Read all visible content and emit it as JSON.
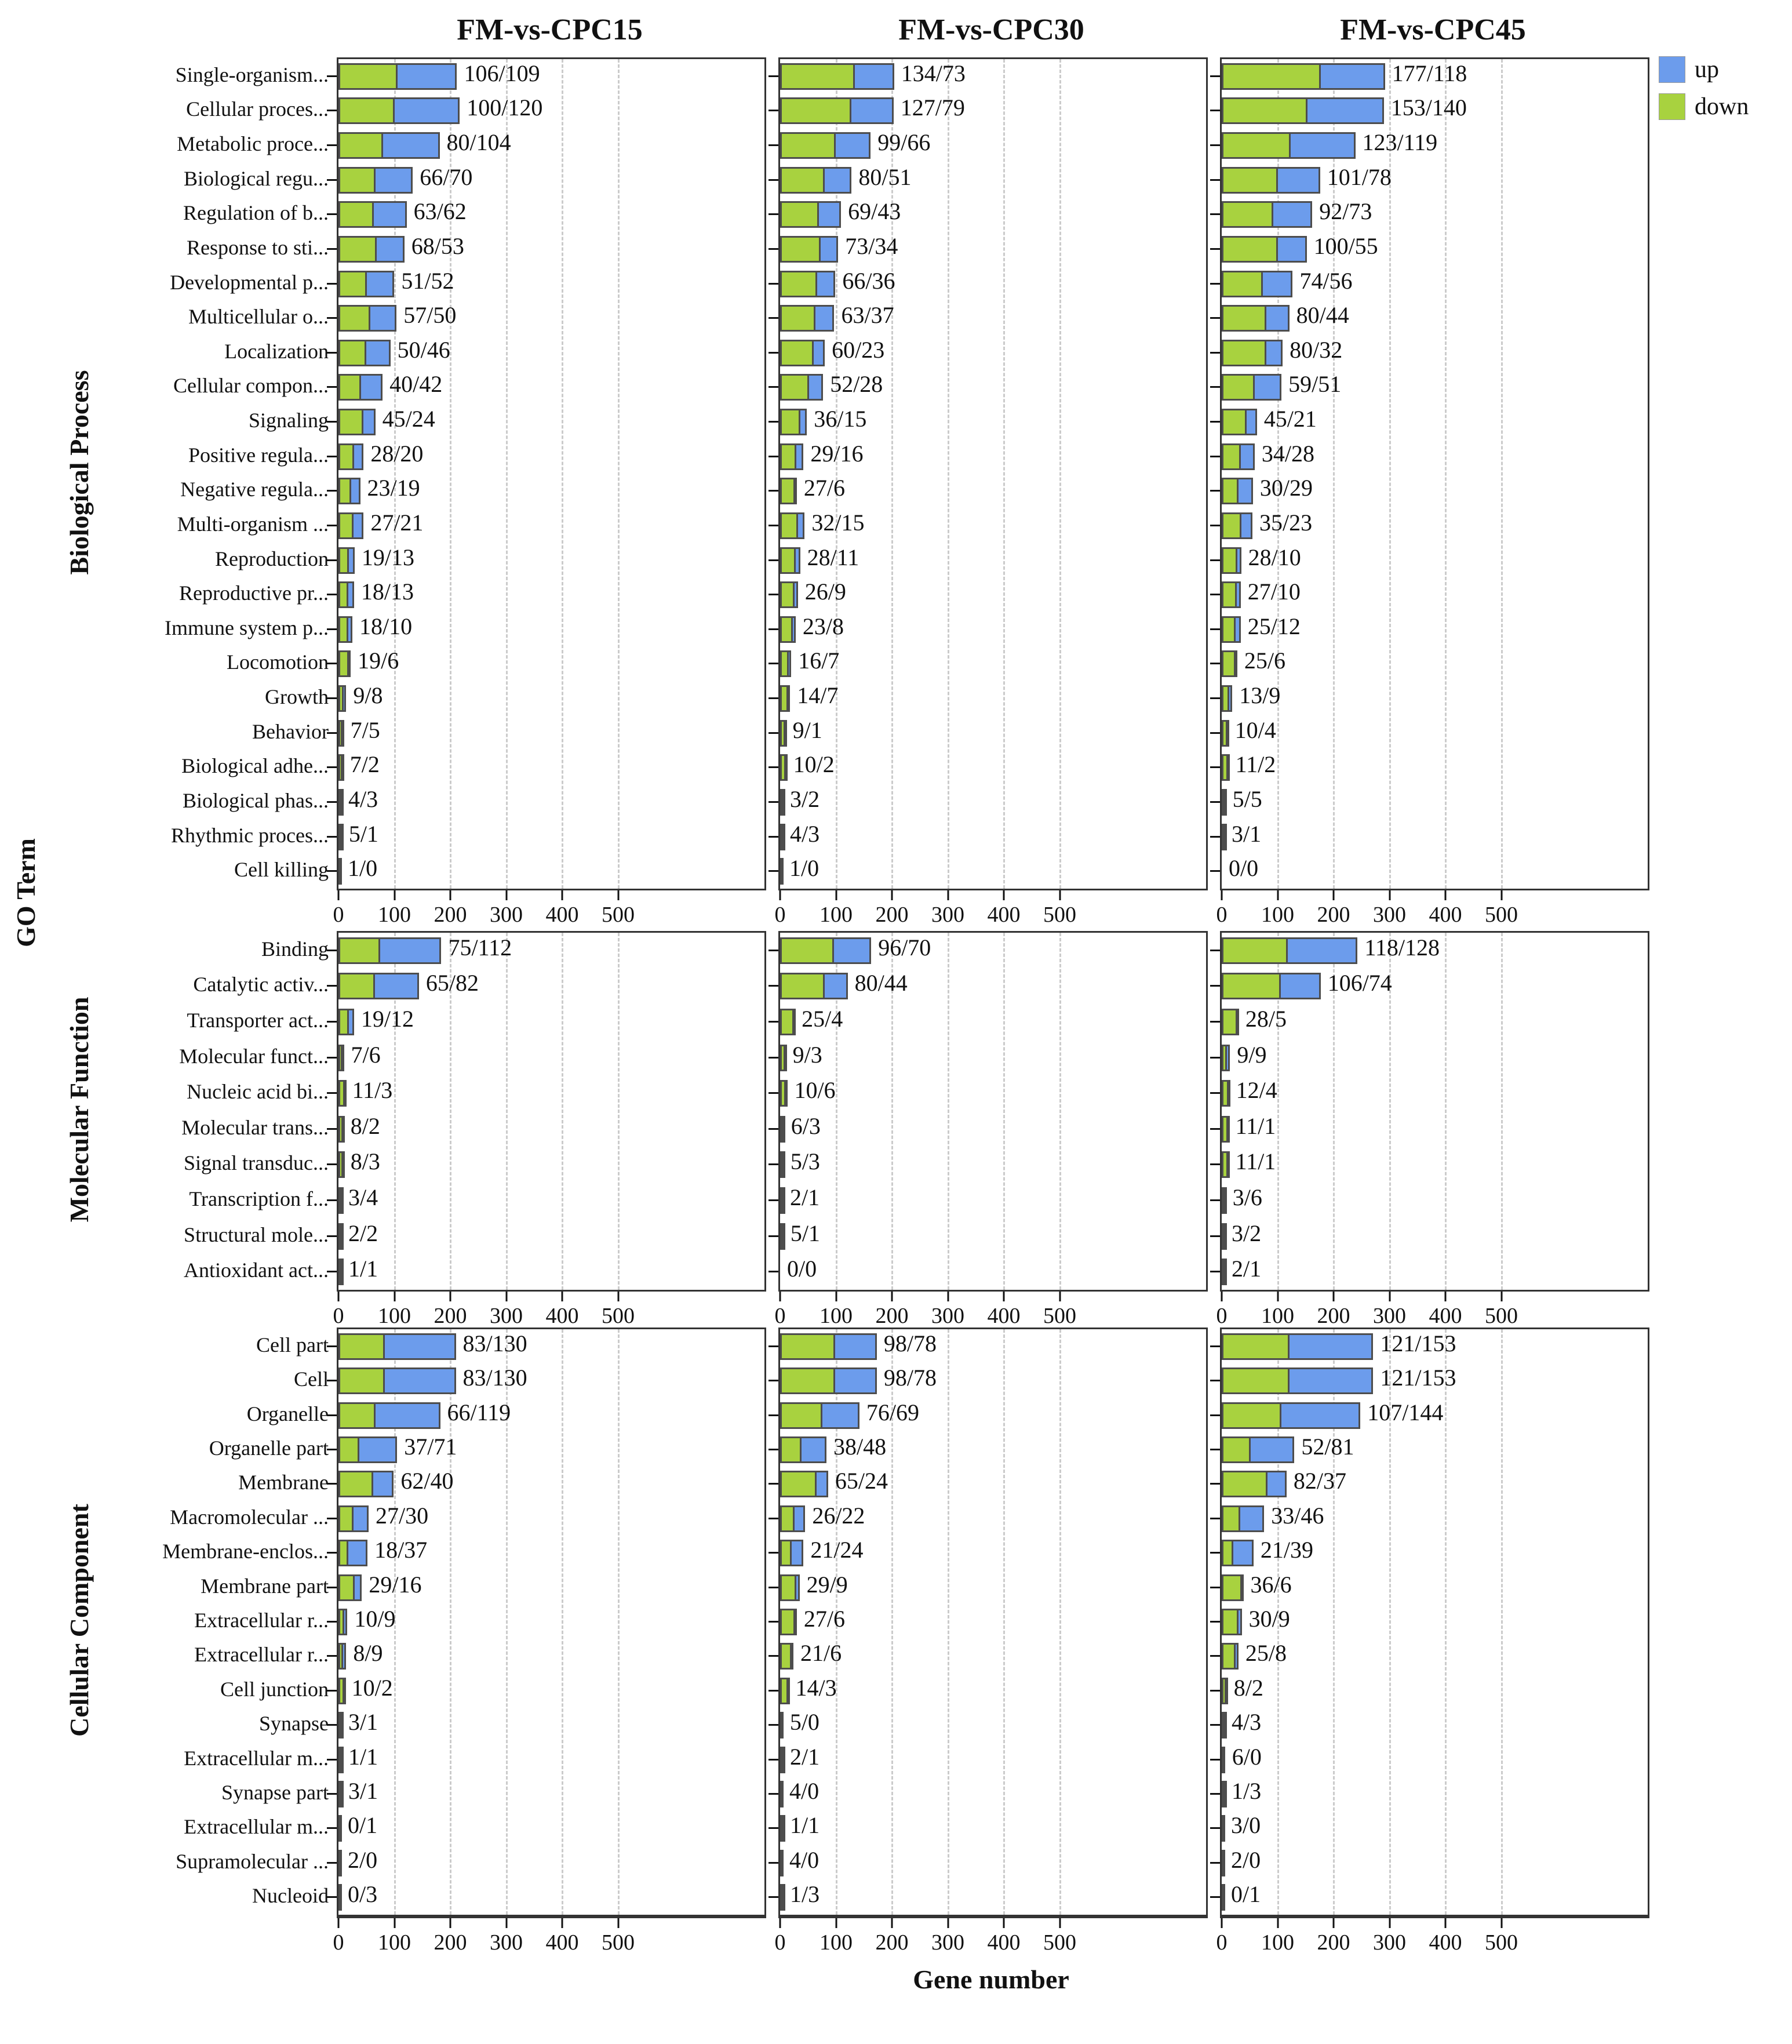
{
  "chart_data": {
    "type": "bar",
    "orientation": "horizontal",
    "stacked": true,
    "title": "",
    "xlabel": "Gene number",
    "ylabel": "GO Term",
    "x_ticks": [
      0,
      100,
      200,
      300,
      400,
      500
    ],
    "x_range": [
      0,
      760
    ],
    "grid": "dashed vertical at 100..500",
    "comparisons": [
      "FM-vs-CPC15",
      "FM-vs-CPC30",
      "FM-vs-CPC45"
    ],
    "legend": [
      {
        "name": "up",
        "color": "#6c9cec"
      },
      {
        "name": "down",
        "color": "#a8d23f"
      }
    ],
    "bar_note": "each bar = green segment (first number of label) then blue segment (second number); label text = first/second",
    "groups": [
      {
        "name": "Biological Process",
        "terms": [
          "Single-organism...",
          "Cellular proces...",
          "Metabolic proce...",
          "Biological regu...",
          "Regulation of b...",
          "Response to sti...",
          "Developmental p...",
          "Multicellular o...",
          "Localization",
          "Cellular compon...",
          "Signaling",
          "Positive regula...",
          "Negative regula...",
          "Multi-organism ...",
          "Reproduction",
          "Reproductive pr...",
          "Immune system p...",
          "Locomotion",
          "Growth",
          "Behavior",
          "Biological adhe...",
          "Biological phas...",
          "Rhythmic proces...",
          "Cell killing"
        ],
        "series": [
          {
            "comparison": "FM-vs-CPC15",
            "bars": [
              [
                106,
                109
              ],
              [
                100,
                120
              ],
              [
                80,
                104
              ],
              [
                66,
                70
              ],
              [
                63,
                62
              ],
              [
                68,
                53
              ],
              [
                51,
                52
              ],
              [
                57,
                50
              ],
              [
                50,
                46
              ],
              [
                40,
                42
              ],
              [
                45,
                24
              ],
              [
                28,
                20
              ],
              [
                23,
                19
              ],
              [
                27,
                21
              ],
              [
                19,
                13
              ],
              [
                18,
                13
              ],
              [
                18,
                10
              ],
              [
                19,
                6
              ],
              [
                9,
                8
              ],
              [
                7,
                5
              ],
              [
                7,
                2
              ],
              [
                4,
                3
              ],
              [
                5,
                1
              ],
              [
                1,
                0
              ]
            ]
          },
          {
            "comparison": "FM-vs-CPC30",
            "bars": [
              [
                134,
                73
              ],
              [
                127,
                79
              ],
              [
                99,
                66
              ],
              [
                80,
                51
              ],
              [
                69,
                43
              ],
              [
                73,
                34
              ],
              [
                66,
                36
              ],
              [
                63,
                37
              ],
              [
                60,
                23
              ],
              [
                52,
                28
              ],
              [
                36,
                15
              ],
              [
                29,
                16
              ],
              [
                27,
                6
              ],
              [
                32,
                15
              ],
              [
                28,
                11
              ],
              [
                26,
                9
              ],
              [
                23,
                8
              ],
              [
                16,
                7
              ],
              [
                14,
                7
              ],
              [
                9,
                1
              ],
              [
                10,
                2
              ],
              [
                3,
                2
              ],
              [
                4,
                3
              ],
              [
                1,
                0
              ]
            ]
          },
          {
            "comparison": "FM-vs-CPC45",
            "bars": [
              [
                177,
                118
              ],
              [
                153,
                140
              ],
              [
                123,
                119
              ],
              [
                101,
                78
              ],
              [
                92,
                73
              ],
              [
                100,
                55
              ],
              [
                74,
                56
              ],
              [
                80,
                44
              ],
              [
                80,
                32
              ],
              [
                59,
                51
              ],
              [
                45,
                21
              ],
              [
                34,
                28
              ],
              [
                30,
                29
              ],
              [
                35,
                23
              ],
              [
                28,
                10
              ],
              [
                27,
                10
              ],
              [
                25,
                12
              ],
              [
                25,
                6
              ],
              [
                13,
                9
              ],
              [
                10,
                4
              ],
              [
                11,
                2
              ],
              [
                5,
                5
              ],
              [
                3,
                1
              ],
              [
                0,
                0
              ]
            ]
          }
        ]
      },
      {
        "name": "Molecular Function",
        "terms": [
          "Binding",
          "Catalytic activ...",
          "Transporter act...",
          "Molecular funct...",
          "Nucleic acid bi...",
          "Molecular trans...",
          "Signal transduc...",
          "Transcription f...",
          "Structural mole...",
          "Antioxidant act..."
        ],
        "series": [
          {
            "comparison": "FM-vs-CPC15",
            "bars": [
              [
                75,
                112
              ],
              [
                65,
                82
              ],
              [
                19,
                12
              ],
              [
                7,
                6
              ],
              [
                11,
                3
              ],
              [
                8,
                2
              ],
              [
                8,
                3
              ],
              [
                3,
                4
              ],
              [
                2,
                2
              ],
              [
                1,
                1
              ]
            ]
          },
          {
            "comparison": "FM-vs-CPC30",
            "bars": [
              [
                96,
                70
              ],
              [
                80,
                44
              ],
              [
                25,
                4
              ],
              [
                9,
                3
              ],
              [
                10,
                6
              ],
              [
                6,
                3
              ],
              [
                5,
                3
              ],
              [
                2,
                1
              ],
              [
                5,
                1
              ],
              [
                0,
                0
              ]
            ]
          },
          {
            "comparison": "FM-vs-CPC45",
            "bars": [
              [
                118,
                128
              ],
              [
                106,
                74
              ],
              [
                28,
                5
              ],
              [
                9,
                9
              ],
              [
                12,
                4
              ],
              [
                11,
                1
              ],
              [
                11,
                1
              ],
              [
                3,
                6
              ],
              [
                3,
                2
              ],
              [
                2,
                1
              ]
            ]
          }
        ]
      },
      {
        "name": "Cellular Component",
        "terms": [
          "Cell part",
          "Cell",
          "Organelle",
          "Organelle part",
          "Membrane",
          "Macromolecular ...",
          "Membrane-enclos...",
          "Membrane part",
          "Extracellular r...",
          "Extracellular r...",
          "Cell junction",
          "Synapse",
          "Extracellular m...",
          "Synapse part",
          "Extracellular m...",
          "Supramolecular ...",
          "Nucleoid"
        ],
        "series": [
          {
            "comparison": "FM-vs-CPC15",
            "bars": [
              [
                83,
                130
              ],
              [
                83,
                130
              ],
              [
                66,
                119
              ],
              [
                37,
                71
              ],
              [
                62,
                40
              ],
              [
                27,
                30
              ],
              [
                18,
                37
              ],
              [
                29,
                16
              ],
              [
                10,
                9
              ],
              [
                8,
                9
              ],
              [
                10,
                2
              ],
              [
                3,
                1
              ],
              [
                1,
                1
              ],
              [
                3,
                1
              ],
              [
                0,
                1
              ],
              [
                2,
                0
              ],
              [
                0,
                3
              ]
            ]
          },
          {
            "comparison": "FM-vs-CPC30",
            "bars": [
              [
                98,
                78
              ],
              [
                98,
                78
              ],
              [
                76,
                69
              ],
              [
                38,
                48
              ],
              [
                65,
                24
              ],
              [
                26,
                22
              ],
              [
                21,
                24
              ],
              [
                29,
                9
              ],
              [
                27,
                6
              ],
              [
                21,
                6
              ],
              [
                14,
                3
              ],
              [
                5,
                0
              ],
              [
                2,
                1
              ],
              [
                4,
                0
              ],
              [
                1,
                1
              ],
              [
                4,
                0
              ],
              [
                1,
                3
              ]
            ]
          },
          {
            "comparison": "FM-vs-CPC45",
            "bars": [
              [
                121,
                153
              ],
              [
                121,
                153
              ],
              [
                107,
                144
              ],
              [
                52,
                81
              ],
              [
                82,
                37
              ],
              [
                33,
                46
              ],
              [
                21,
                39
              ],
              [
                36,
                6
              ],
              [
                30,
                9
              ],
              [
                25,
                8
              ],
              [
                8,
                2
              ],
              [
                4,
                3
              ],
              [
                6,
                0
              ],
              [
                1,
                3
              ],
              [
                3,
                0
              ],
              [
                2,
                0
              ],
              [
                0,
                1
              ]
            ]
          }
        ]
      }
    ]
  }
}
